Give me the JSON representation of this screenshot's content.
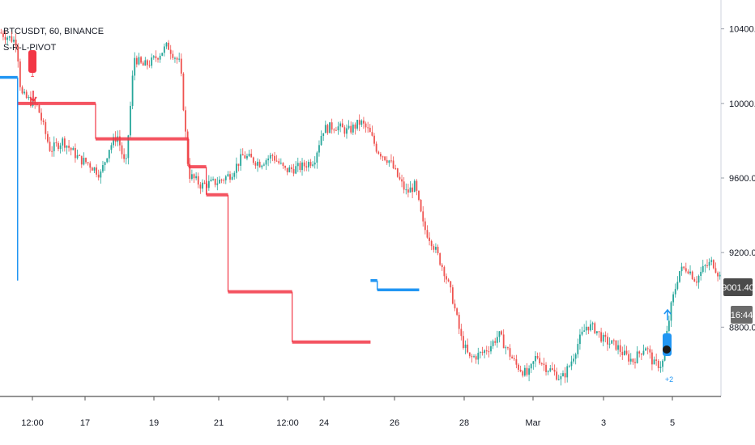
{
  "header": {
    "symbol": "BTCUSDT, 60, BINANCE",
    "indicator": "S-R-L-PIVOT"
  },
  "price_badge": {
    "value": "9001.40",
    "color": "#4a4a4a"
  },
  "countdown_badge": {
    "value": "16:44",
    "color": "#6b6b6b"
  },
  "markers": {
    "sell_label": "1",
    "buy_label": "+2"
  },
  "colors": {
    "up": "#26a69a",
    "down": "#ef5350",
    "resistance": "#f23645",
    "support": "#2196f3",
    "axis_text": "#131722"
  },
  "chart_data": {
    "type": "candlestick",
    "title": "BTCUSDT, 60, BINANCE",
    "x_tick_labels": [
      "12:00",
      "17",
      "19",
      "21",
      "12:00",
      "24",
      "26",
      "28",
      "Mar",
      "3",
      "5"
    ],
    "y_tick_labels": [
      "10400.00",
      "10000.00",
      "9600.00",
      "9200.00",
      "8800.00"
    ],
    "ylim": [
      8500,
      10500
    ],
    "grid": false,
    "price_path": [
      [
        0,
        10380
      ],
      [
        0.04,
        10330
      ],
      [
        0.05,
        10050
      ],
      [
        0.09,
        9980
      ],
      [
        0.12,
        9750
      ],
      [
        0.15,
        9800
      ],
      [
        0.19,
        9700
      ],
      [
        0.21,
        9680
      ],
      [
        0.24,
        9620
      ],
      [
        0.26,
        9760
      ],
      [
        0.28,
        9830
      ],
      [
        0.3,
        9650
      ],
      [
        0.32,
        10250
      ],
      [
        0.34,
        10200
      ],
      [
        0.36,
        10220
      ],
      [
        0.4,
        10310
      ],
      [
        0.43,
        10210
      ],
      [
        0.45,
        9620
      ],
      [
        0.48,
        9560
      ],
      [
        0.52,
        9580
      ],
      [
        0.55,
        9620
      ],
      [
        0.58,
        9720
      ],
      [
        0.62,
        9680
      ],
      [
        0.65,
        9720
      ],
      [
        0.68,
        9640
      ],
      [
        0.72,
        9660
      ],
      [
        0.75,
        9700
      ],
      [
        0.77,
        9860
      ],
      [
        0.8,
        9880
      ],
      [
        0.83,
        9850
      ],
      [
        0.86,
        9900
      ],
      [
        0.88,
        9850
      ],
      [
        0.9,
        9750
      ],
      [
        0.93,
        9690
      ],
      [
        0.95,
        9600
      ],
      [
        0.97,
        9520
      ],
      [
        0.99,
        9560
      ],
      [
        1.01,
        9340
      ],
      [
        1.03,
        9260
      ],
      [
        1.06,
        9100
      ],
      [
        1.08,
        8950
      ],
      [
        1.1,
        8740
      ],
      [
        1.12,
        8630
      ],
      [
        1.15,
        8660
      ],
      [
        1.17,
        8700
      ],
      [
        1.19,
        8760
      ],
      [
        1.21,
        8680
      ],
      [
        1.23,
        8600
      ],
      [
        1.26,
        8540
      ],
      [
        1.28,
        8650
      ],
      [
        1.3,
        8590
      ],
      [
        1.32,
        8560
      ],
      [
        1.34,
        8520
      ],
      [
        1.36,
        8600
      ],
      [
        1.38,
        8720
      ],
      [
        1.4,
        8810
      ],
      [
        1.42,
        8790
      ],
      [
        1.44,
        8730
      ],
      [
        1.47,
        8700
      ],
      [
        1.49,
        8650
      ],
      [
        1.51,
        8620
      ],
      [
        1.54,
        8700
      ],
      [
        1.56,
        8600
      ],
      [
        1.58,
        8600
      ],
      [
        1.6,
        8900
      ],
      [
        1.62,
        9100
      ],
      [
        1.64,
        9120
      ],
      [
        1.66,
        9050
      ],
      [
        1.68,
        9120
      ],
      [
        1.7,
        9150
      ],
      [
        1.72,
        9060
      ]
    ],
    "resistance_levels": [
      {
        "from": 0.042,
        "to": 0.228,
        "value": 10000
      },
      {
        "from": 0.228,
        "to": 0.45,
        "value": 9810
      },
      {
        "from": 0.45,
        "to": 0.492,
        "value": 9660
      },
      {
        "from": 0.492,
        "to": 0.544,
        "value": 9510
      },
      {
        "from": 0.544,
        "to": 0.697,
        "value": 8990
      },
      {
        "from": 0.697,
        "to": 0.884,
        "value": 8720
      }
    ],
    "support_levels": [
      {
        "from": 0.0,
        "to": 0.042,
        "value": 10140
      },
      {
        "from": 0.884,
        "to": 0.9,
        "value": 9050
      },
      {
        "from": 0.9,
        "to": 1.0,
        "value": 9000
      }
    ]
  }
}
